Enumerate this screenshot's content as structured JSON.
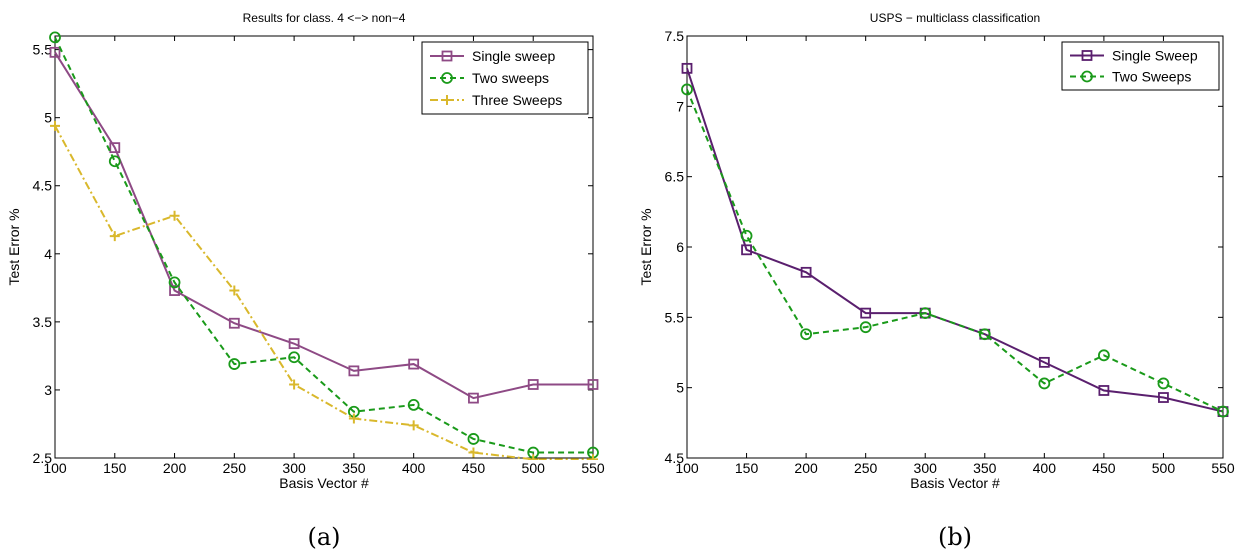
{
  "chart_data": [
    {
      "type": "line",
      "title": "Results for class. 4 <−> non−4",
      "xlabel": "Basis Vector #",
      "ylabel": "Test Error %",
      "xlim": [
        100,
        550
      ],
      "ylim": [
        2.5,
        5.6
      ],
      "xticks": [
        100,
        150,
        200,
        250,
        300,
        350,
        400,
        450,
        500,
        550
      ],
      "yticks": [
        2.5,
        3,
        3.5,
        4,
        4.5,
        5,
        5.5
      ],
      "xtick_labels": [
        "100",
        "150",
        "200",
        "250",
        "300",
        "350",
        "400",
        "450",
        "500",
        "550"
      ],
      "ytick_labels": [
        "2.5",
        "3",
        "3.5",
        "4",
        "4.5",
        "5",
        "5.5"
      ],
      "grid": false,
      "legend_position": "top-right",
      "caption": "(a)",
      "x": [
        100,
        150,
        200,
        250,
        300,
        350,
        400,
        450,
        500,
        550
      ],
      "series": [
        {
          "name": "Single sweep",
          "color": "#8e4a85",
          "dash": "",
          "marker": "square",
          "values": [
            5.48,
            4.78,
            3.73,
            3.49,
            3.34,
            3.14,
            3.19,
            2.94,
            3.04,
            3.04
          ]
        },
        {
          "name": "Two sweeps",
          "color": "#1a9a1a",
          "dash": "6,4",
          "marker": "circle",
          "values": [
            5.59,
            4.68,
            3.79,
            3.19,
            3.24,
            2.84,
            2.89,
            2.64,
            2.54,
            2.54
          ]
        },
        {
          "name": "Three Sweeps",
          "color": "#d9b82c",
          "dash": "8,3,2,3",
          "marker": "plus",
          "values": [
            4.94,
            4.13,
            4.28,
            3.73,
            3.04,
            2.79,
            2.74,
            2.54,
            2.49,
            2.49
          ]
        }
      ]
    },
    {
      "type": "line",
      "title": "USPS − multiclass classification",
      "xlabel": "Basis Vector #",
      "ylabel": "Test Error %",
      "xlim": [
        100,
        550
      ],
      "ylim": [
        4.5,
        7.5
      ],
      "xticks": [
        100,
        150,
        200,
        250,
        300,
        350,
        400,
        450,
        500,
        550
      ],
      "yticks": [
        4.5,
        5,
        5.5,
        6,
        6.5,
        7,
        7.5
      ],
      "xtick_labels": [
        "100",
        "150",
        "200",
        "250",
        "300",
        "350",
        "400",
        "450",
        "500",
        "550"
      ],
      "ytick_labels": [
        "4.5",
        "5",
        "5.5",
        "6",
        "6.5",
        "7",
        "7.5"
      ],
      "grid": false,
      "legend_position": "top-right",
      "caption": "(b)",
      "x": [
        100,
        150,
        200,
        250,
        300,
        350,
        400,
        450,
        500,
        550
      ],
      "series": [
        {
          "name": "Single Sweep",
          "color": "#5a1f6e",
          "dash": "",
          "marker": "square",
          "values": [
            7.27,
            5.98,
            5.82,
            5.53,
            5.53,
            5.38,
            5.18,
            4.98,
            4.93,
            4.83
          ]
        },
        {
          "name": "Two Sweeps",
          "color": "#1a9a1a",
          "dash": "6,4",
          "marker": "circle",
          "values": [
            7.12,
            6.08,
            5.38,
            5.43,
            5.53,
            5.38,
            5.03,
            5.23,
            5.03,
            4.83
          ]
        }
      ]
    }
  ]
}
